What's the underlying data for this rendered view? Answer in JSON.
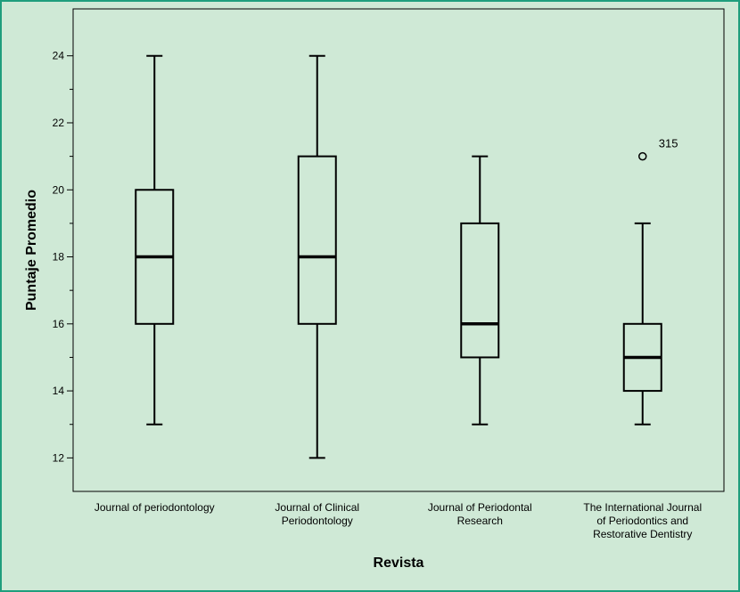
{
  "chart_data": {
    "type": "boxplot",
    "title": "",
    "xlabel": "Revista",
    "ylabel": "Puntaje Promedio",
    "ylim": [
      11,
      25.4
    ],
    "yticks": [
      12,
      14,
      16,
      18,
      20,
      22,
      24
    ],
    "ytick_labels": [
      "12",
      "14",
      "16",
      "18",
      "20",
      "22",
      "24"
    ],
    "grid": false,
    "categories": [
      [
        "Journal of periodontology"
      ],
      [
        "Journal of Clinical",
        "Periodontology"
      ],
      [
        "Journal of Periodontal",
        "Research"
      ],
      [
        "The International Journal",
        "of Periodontics and",
        "Restorative Dentistry"
      ]
    ],
    "boxes": [
      {
        "min": 13,
        "q1": 16,
        "median": 18,
        "q3": 20,
        "max": 24,
        "outliers": []
      },
      {
        "min": 12,
        "q1": 16,
        "median": 18,
        "q3": 21,
        "max": 24,
        "outliers": []
      },
      {
        "min": 13,
        "q1": 15,
        "median": 16,
        "q3": 19,
        "max": 21,
        "outliers": []
      },
      {
        "min": 13,
        "q1": 14,
        "median": 15,
        "q3": 16,
        "max": 19,
        "outliers": [
          {
            "value": 21,
            "label": "315"
          }
        ]
      }
    ]
  }
}
